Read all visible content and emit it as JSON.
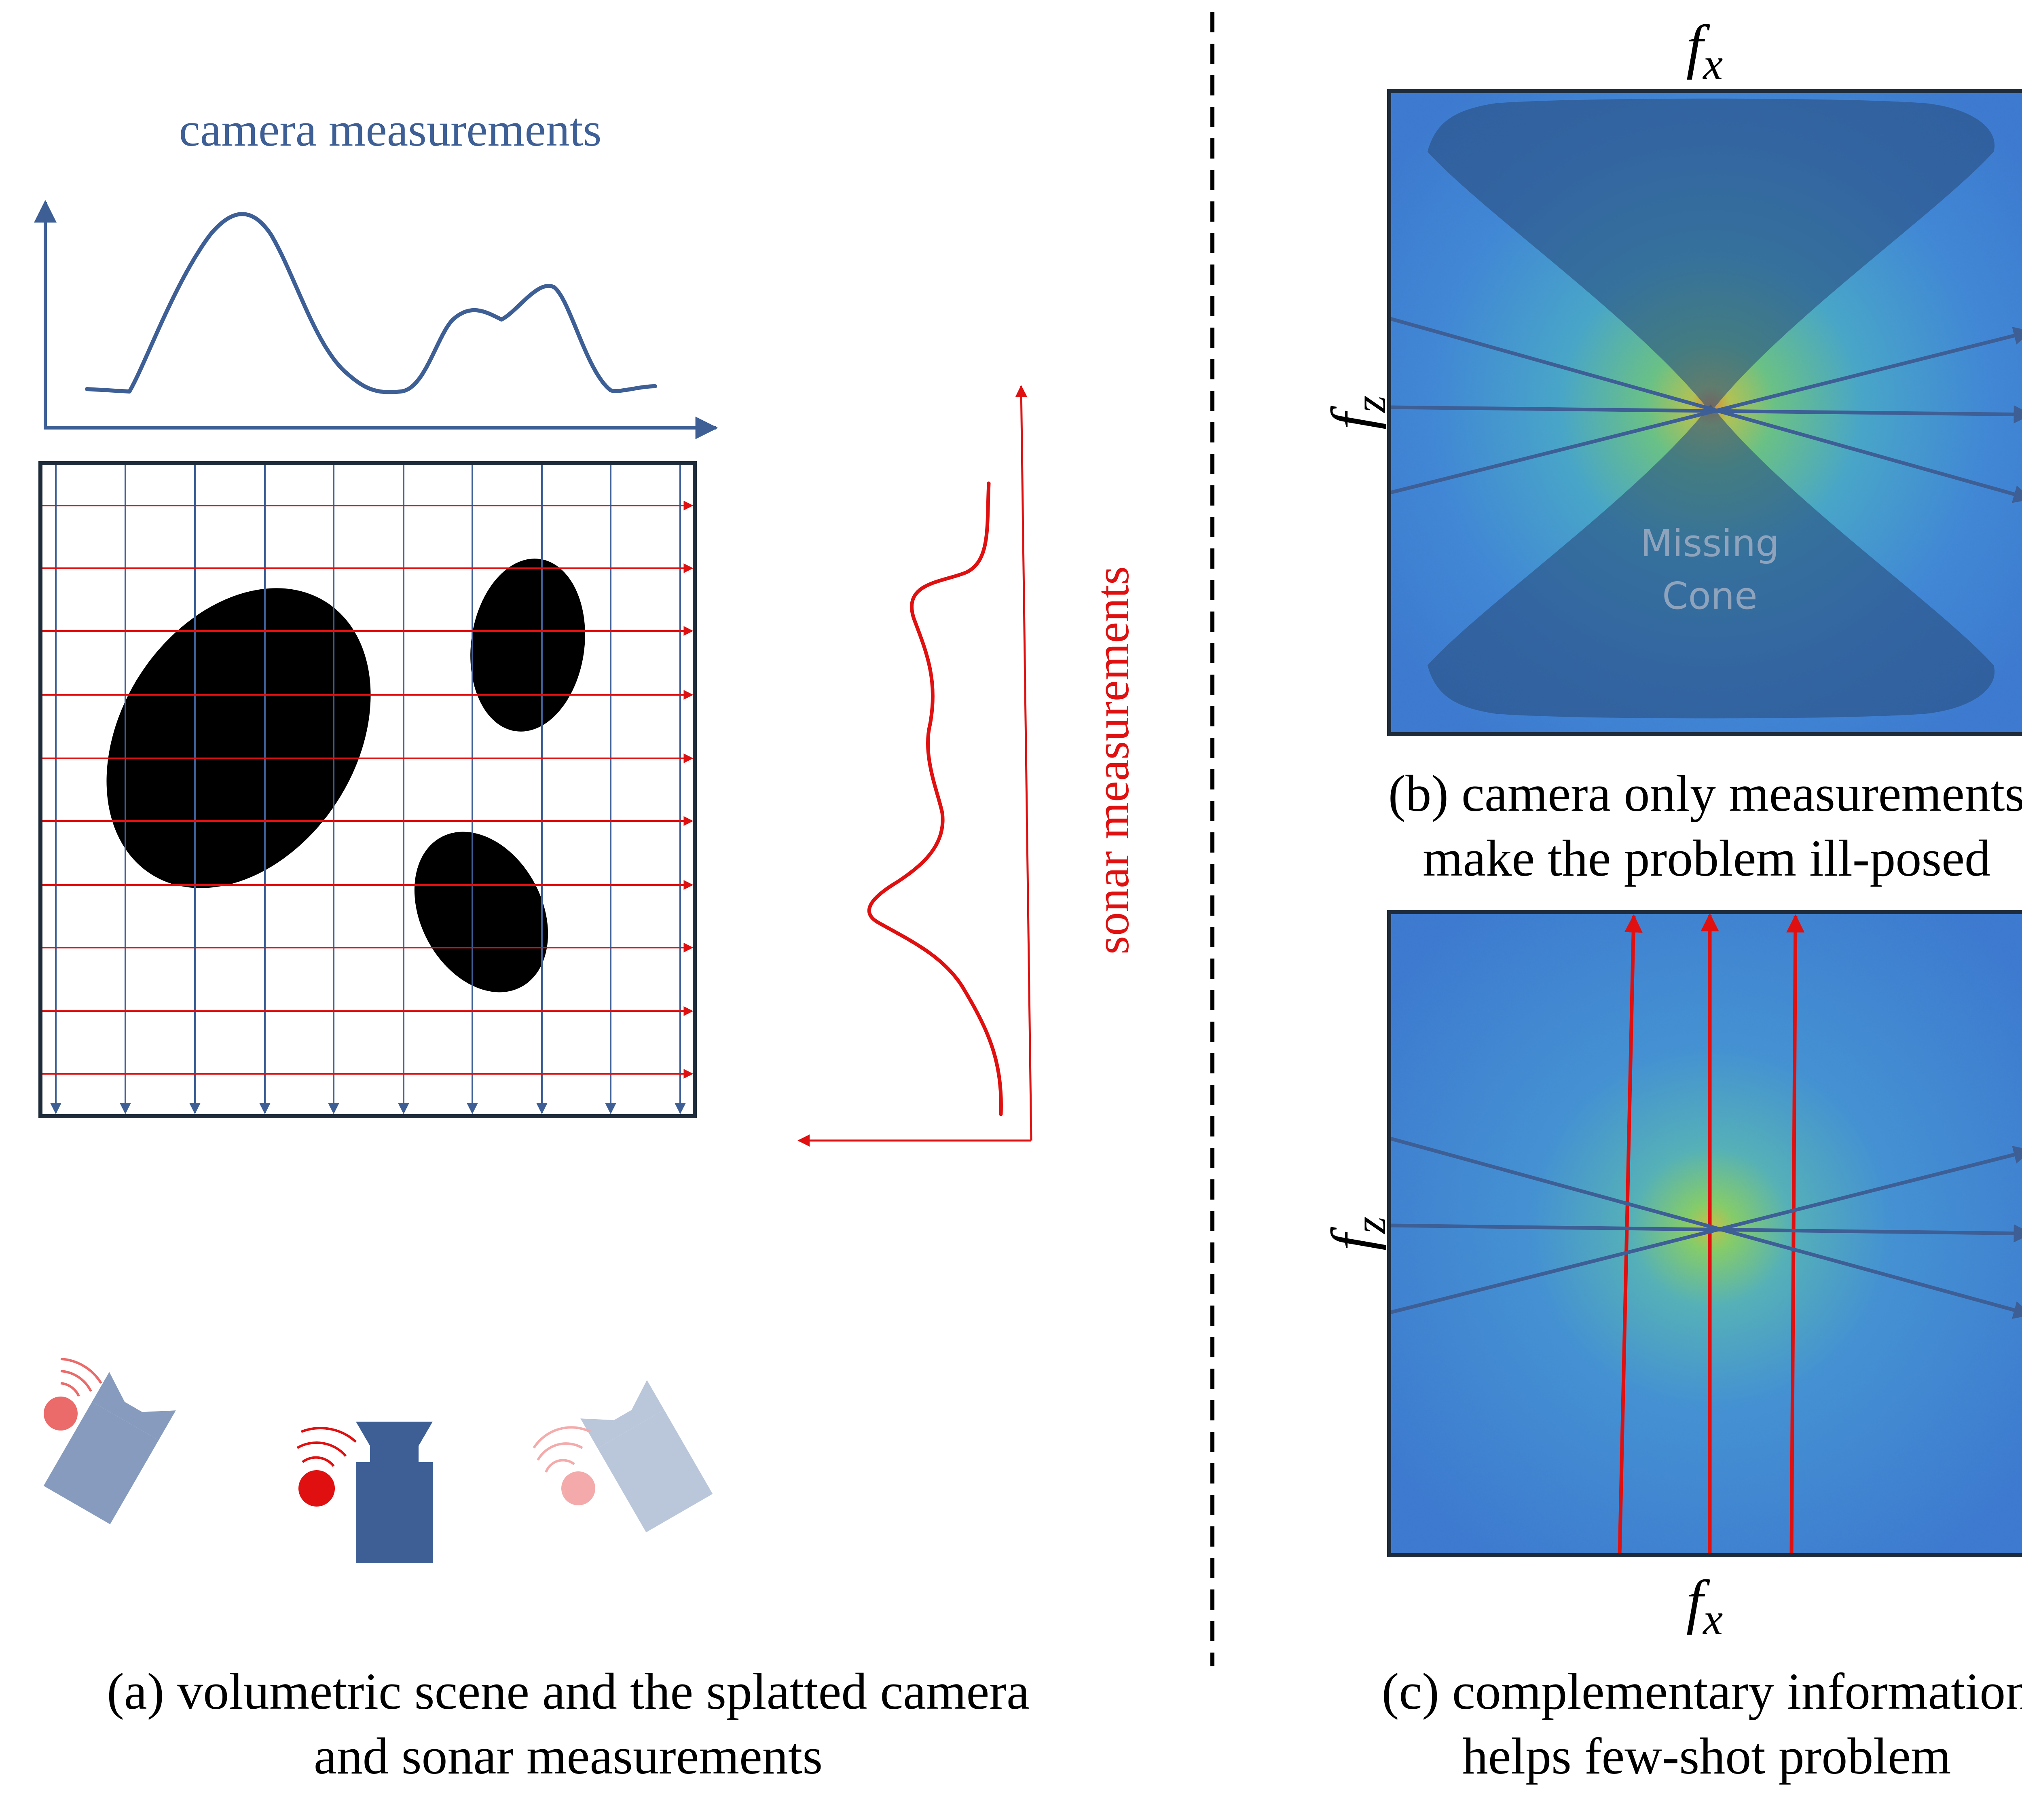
{
  "colors": {
    "camera_blue": "#3D5F96",
    "sonar_red": "#E01010",
    "grid_border": "#1E2B3A",
    "black": "#000000",
    "spectrum_blue": "#3F86D6",
    "cone_shade": "#2A4E7E",
    "missing_cone_text": "#8FA3BC"
  },
  "panel_a": {
    "camera_label": "camera measurements",
    "sonar_label": "sonar measurements",
    "caption_line1": "(a) volumetric scene and the splatted camera",
    "caption_line2": "and sonar measurements",
    "icons": [
      {
        "name": "sonar-camera-left",
        "opacity": 0.6
      },
      {
        "name": "sonar-camera-center",
        "opacity": 1.0
      },
      {
        "name": "sonar-camera-right",
        "opacity": 0.35
      }
    ]
  },
  "panel_b": {
    "top_axis": "f",
    "top_axis_sub": "x",
    "side_axis": "f",
    "side_axis_sub": "z",
    "missing_line1": "Missing",
    "missing_line2": "Cone",
    "caption_line1": "(b) camera only measurements",
    "caption_line2": "make the problem ill-posed"
  },
  "panel_c": {
    "bottom_axis": "f",
    "bottom_axis_sub": "x",
    "side_axis": "f",
    "side_axis_sub": "z",
    "caption_line1": "(c) complementary information",
    "caption_line2": "helps few-shot problem"
  }
}
